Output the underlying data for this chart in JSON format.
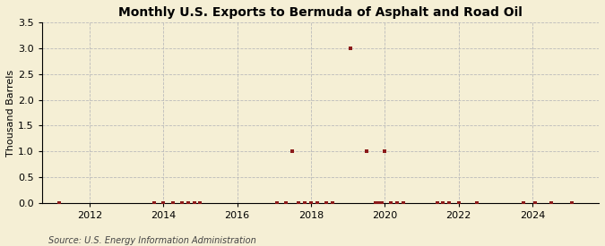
{
  "title": "Monthly U.S. Exports to Bermuda of Asphalt and Road Oil",
  "ylabel": "Thousand Barrels",
  "source": "Source: U.S. Energy Information Administration",
  "background_color": "#f5efd5",
  "plot_bg_color": "#f5efd5",
  "marker_color": "#8b1a1a",
  "ylim": [
    0,
    3.5
  ],
  "yticks": [
    0.0,
    0.5,
    1.0,
    1.5,
    2.0,
    2.5,
    3.0,
    3.5
  ],
  "xlim_start": 2010.7,
  "xlim_end": 2025.8,
  "xticks": [
    2012,
    2014,
    2016,
    2018,
    2020,
    2022,
    2024
  ],
  "data_points": [
    [
      2011.17,
      0.0
    ],
    [
      2013.75,
      0.0
    ],
    [
      2014.0,
      0.0
    ],
    [
      2014.25,
      0.0
    ],
    [
      2014.5,
      0.0
    ],
    [
      2014.67,
      0.0
    ],
    [
      2014.83,
      0.0
    ],
    [
      2015.0,
      0.0
    ],
    [
      2017.08,
      0.0
    ],
    [
      2017.33,
      0.0
    ],
    [
      2017.5,
      1.0
    ],
    [
      2017.67,
      0.0
    ],
    [
      2017.83,
      0.0
    ],
    [
      2018.0,
      0.0
    ],
    [
      2018.17,
      0.0
    ],
    [
      2018.42,
      0.0
    ],
    [
      2018.58,
      0.0
    ],
    [
      2019.08,
      3.0
    ],
    [
      2019.5,
      1.0
    ],
    [
      2019.75,
      0.0
    ],
    [
      2019.83,
      0.0
    ],
    [
      2019.92,
      0.0
    ],
    [
      2020.0,
      1.0
    ],
    [
      2020.17,
      0.0
    ],
    [
      2020.33,
      0.0
    ],
    [
      2020.5,
      0.0
    ],
    [
      2021.42,
      0.0
    ],
    [
      2021.58,
      0.0
    ],
    [
      2021.75,
      0.0
    ],
    [
      2022.0,
      0.0
    ],
    [
      2022.5,
      0.0
    ],
    [
      2023.75,
      0.0
    ],
    [
      2024.08,
      0.0
    ],
    [
      2024.5,
      0.0
    ],
    [
      2025.08,
      0.0
    ]
  ],
  "grid_color": "#bbbbbb",
  "grid_linestyle": "--",
  "grid_linewidth": 0.6,
  "title_fontsize": 10,
  "ylabel_fontsize": 8,
  "tick_fontsize": 8,
  "source_fontsize": 7
}
